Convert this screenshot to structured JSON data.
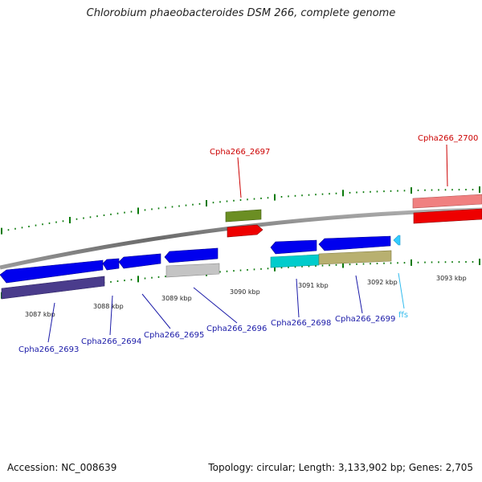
{
  "title": "Chlorobium phaeobacteroides DSM 266, complete genome",
  "footer": {
    "accession": "Accession: NC_008639",
    "topology": "Topology: circular; Length: 3,133,902 bp; Genes: 2,705"
  },
  "colors": {
    "backbone": "#808080",
    "tick": "#0a7a0a",
    "label_strand_minus": "#1a1aa8",
    "label_strand_plus": "#cc0000",
    "label_rna": "#33bbee"
  },
  "scale": {
    "ticks": [
      "3087 kbp",
      "3088 kbp",
      "3089 kbp",
      "3090 kbp",
      "3091 kbp",
      "3092 kbp",
      "3093 kbp"
    ]
  },
  "genes": [
    {
      "name": "Cpha266_2693",
      "strand": "minus",
      "color": "#0000ee",
      "label_color": "#1a1aa8"
    },
    {
      "name": "Cpha266_2694",
      "strand": "minus",
      "color": "#0000ee",
      "label_color": "#1a1aa8"
    },
    {
      "name": "Cpha266_2695",
      "strand": "minus",
      "color": "#0000ee",
      "label_color": "#1a1aa8"
    },
    {
      "name": "Cpha266_2696",
      "strand": "minus",
      "color": "#0000ee",
      "label_color": "#1a1aa8"
    },
    {
      "name": "Cpha266_2697",
      "strand": "plus",
      "color": "#ee0000",
      "label_color": "#cc0000"
    },
    {
      "name": "Cpha266_2698",
      "strand": "minus",
      "color": "#0000ee",
      "label_color": "#1a1aa8"
    },
    {
      "name": "Cpha266_2699",
      "strand": "minus",
      "color": "#0000ee",
      "label_color": "#1a1aa8"
    },
    {
      "name": "ffs",
      "strand": "minus",
      "color": "#33ccff",
      "label_color": "#33bbee"
    },
    {
      "name": "Cpha266_2700",
      "strand": "plus",
      "color": "#ee0000",
      "label_color": "#cc0000"
    }
  ]
}
